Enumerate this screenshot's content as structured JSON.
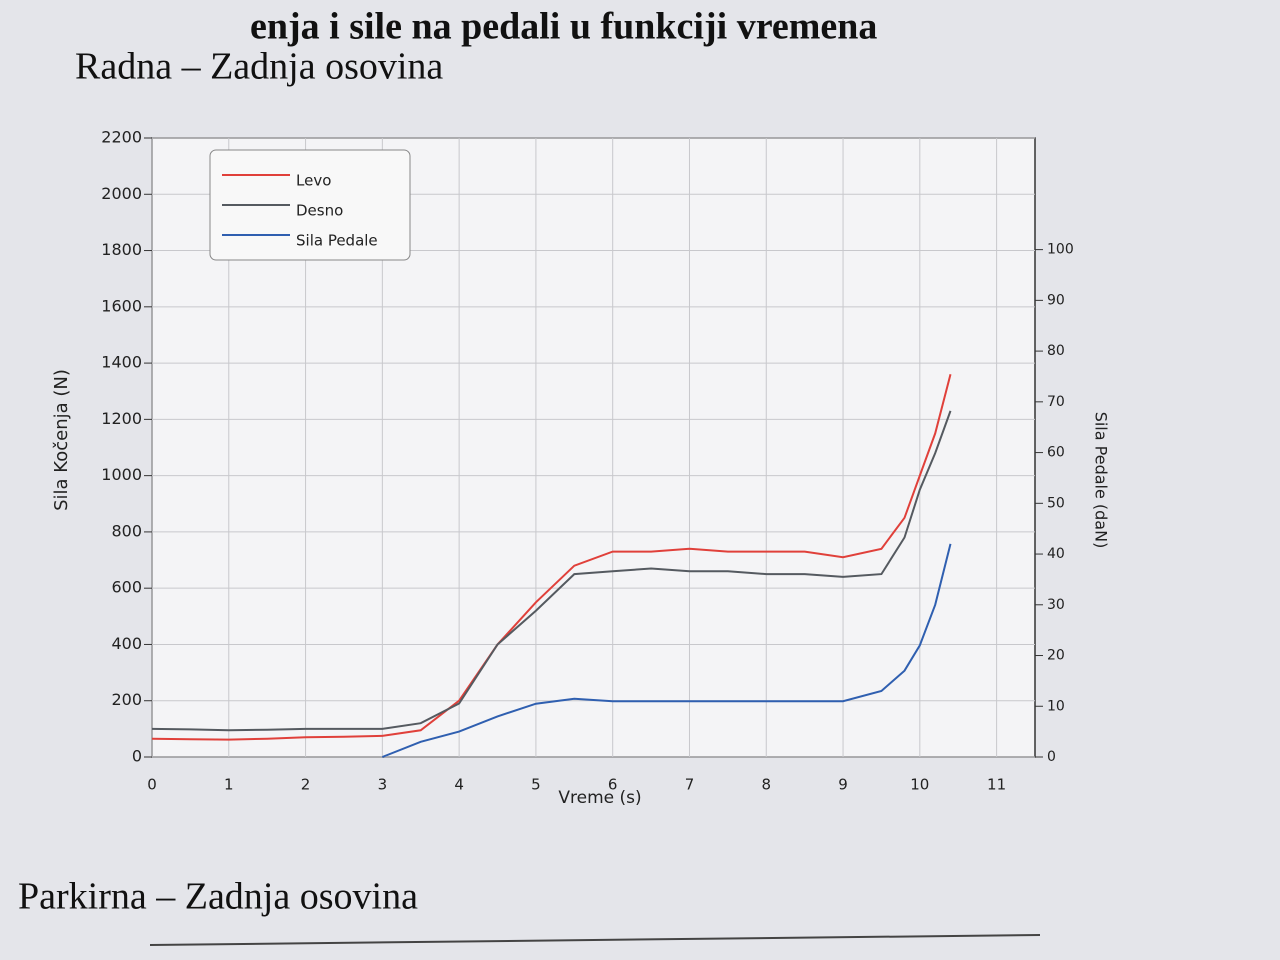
{
  "heading": "enja i sile na pedali u funkciji vremena",
  "chart_data": {
    "type": "line",
    "title": "Radna – Zadnja osovina",
    "x_label": "Vreme (s)",
    "y_label": "Sila Kočenja (N)",
    "y2_label": "Sila Pedale (daN)",
    "x": [
      0,
      0.5,
      1,
      1.5,
      2,
      2.5,
      3,
      3.5,
      4,
      4.5,
      5,
      5.5,
      6,
      6.5,
      7,
      7.5,
      8,
      8.5,
      9,
      9.5,
      9.8,
      10,
      10.2,
      10.4
    ],
    "series": [
      {
        "name": "Levo",
        "color": "#e0403a",
        "values": [
          65,
          63,
          62,
          65,
          70,
          72,
          75,
          95,
          200,
          400,
          550,
          680,
          730,
          730,
          740,
          730,
          730,
          730,
          710,
          740,
          850,
          1000,
          1150,
          1360
        ]
      },
      {
        "name": "Desno",
        "color": "#555a60",
        "values": [
          100,
          98,
          95,
          97,
          100,
          100,
          100,
          120,
          190,
          400,
          520,
          650,
          660,
          670,
          660,
          660,
          650,
          650,
          640,
          650,
          780,
          950,
          1080,
          1230
        ]
      },
      {
        "name": "Sila Pedale",
        "color": "#2f5fb0",
        "axis": "y2",
        "values": [
          null,
          null,
          null,
          null,
          null,
          null,
          0,
          3,
          5,
          8,
          10.5,
          11.5,
          11,
          11,
          11,
          11,
          11,
          11,
          11,
          13,
          17,
          22,
          30,
          42
        ]
      }
    ],
    "xlim": [
      0,
      11.5
    ],
    "xticks": [
      0,
      1,
      2,
      3,
      4,
      5,
      6,
      7,
      8,
      9,
      10,
      11
    ],
    "ylim": [
      0,
      2200
    ],
    "yticks": [
      0,
      200,
      400,
      600,
      800,
      1000,
      1200,
      1400,
      1600,
      1800,
      2000,
      2200
    ],
    "y2lim": [
      0,
      122
    ],
    "y2ticks": [
      0,
      10,
      20,
      30,
      40,
      50,
      60,
      70,
      80,
      90,
      100
    ],
    "grid": true,
    "legend": "top-left"
  },
  "next_title": "Parkirna – Zadnja osovina"
}
